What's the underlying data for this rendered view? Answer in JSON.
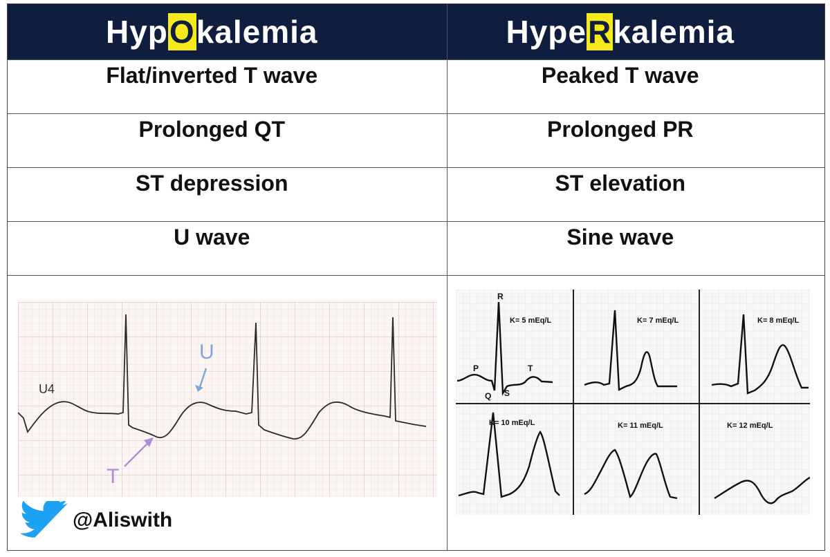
{
  "header": {
    "left": {
      "pre": "Hyp",
      "highlight": "O",
      "post": "kalemia"
    },
    "right": {
      "pre": "Hype",
      "highlight": "R",
      "post": "kalemia"
    }
  },
  "rows": [
    {
      "left": "Flat/inverted T wave",
      "right": "Peaked T wave"
    },
    {
      "left": "Prolonged QT",
      "right": "Prolonged PR"
    },
    {
      "left": "ST depression",
      "right": "ST elevation"
    },
    {
      "left": "U wave",
      "right": "Sine wave"
    }
  ],
  "left_ecg": {
    "lead": "U4",
    "u_label": "U",
    "t_label": "T"
  },
  "right_ecg": {
    "wave_labels": {
      "p": "P",
      "q": "Q",
      "r": "R",
      "s": "S",
      "t": "T"
    },
    "panels": [
      "K= 5 mEq/L",
      "K= 7 mEq/L",
      "K= 8 mEq/L",
      "K= 10 mEq/L",
      "K= 11 mEq/L",
      "K= 12 mEq/L"
    ]
  },
  "credit": {
    "handle": "@Aliswith",
    "icon": "twitter-bird-icon"
  },
  "colors": {
    "header_bg": "#0f1d3f",
    "highlight": "#f6ea1d",
    "u_arrow": "#7fa6d8",
    "t_arrow": "#b48ad6"
  }
}
